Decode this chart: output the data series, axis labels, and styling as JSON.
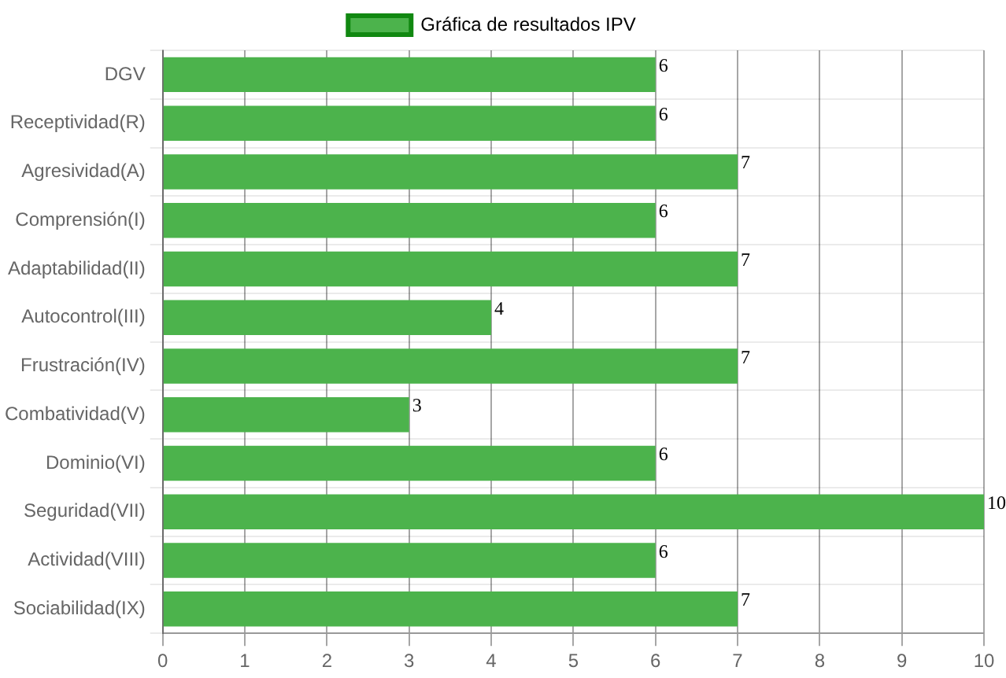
{
  "chart_data": {
    "type": "bar",
    "orientation": "horizontal",
    "categories": [
      "DGV",
      "Receptividad(R)",
      "Agresividad(A)",
      "Comprensión(I)",
      "Adaptabilidad(II)",
      "Autocontrol(III)",
      "Frustración(IV)",
      "Combatividad(V)",
      "Dominio(VI)",
      "Seguridad(VII)",
      "Actividad(VIII)",
      "Sociabilidad(IX)"
    ],
    "series": [
      {
        "name": "Gráfica de resultados IPV",
        "color": "#4cb34c",
        "values": [
          6,
          6,
          7,
          6,
          7,
          4,
          7,
          3,
          6,
          10,
          6,
          7
        ]
      }
    ],
    "xlim": [
      0,
      10
    ],
    "xticks": [
      0,
      1,
      2,
      3,
      4,
      5,
      6,
      7,
      8,
      9,
      10
    ],
    "grid": true,
    "legend": "top",
    "data_labels": true
  }
}
